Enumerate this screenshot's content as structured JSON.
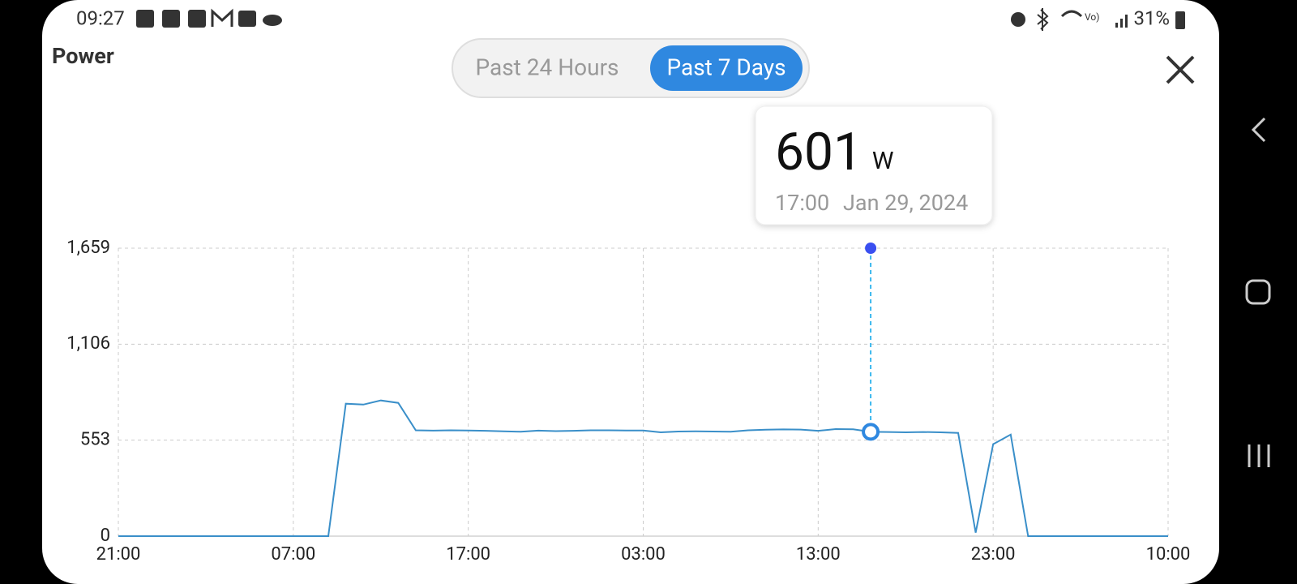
{
  "status_bar": {
    "time": "09:27",
    "battery": "31%"
  },
  "header": {
    "title": "Power",
    "tabs": [
      "Past 24 Hours",
      "Past 7 Days"
    ]
  },
  "tooltip": {
    "unit": "W",
    "time": "17:00",
    "date": "Jan 29, 2024"
  },
  "chart_data": {
    "type": "line",
    "categories": [
      "21:00",
      null,
      null,
      null,
      null,
      null,
      null,
      null,
      null,
      null,
      "07:00",
      null,
      null,
      null,
      null,
      null,
      null,
      null,
      null,
      null,
      "17:00",
      null,
      null,
      null,
      null,
      null,
      null,
      null,
      null,
      null,
      "03:00",
      null,
      null,
      null,
      null,
      null,
      null,
      null,
      null,
      null,
      "13:00",
      null,
      null,
      null,
      null,
      null,
      null,
      null,
      null,
      null,
      "23:00",
      null,
      null,
      null,
      null,
      null,
      null,
      null,
      null,
      null,
      "10:00"
    ],
    "series": [
      {
        "name": "Power",
        "color": "#3a8fc9",
        "values": [
          0,
          0,
          0,
          0,
          0,
          0,
          0,
          0,
          0,
          0,
          0,
          0,
          0,
          763,
          758,
          782,
          768,
          610,
          608,
          610,
          609,
          607,
          604,
          602,
          608,
          605,
          607,
          610,
          610,
          609,
          609,
          598,
          603,
          604,
          603,
          602,
          610,
          613,
          615,
          614,
          607,
          617,
          616,
          601,
          600,
          598,
          600,
          598,
          595,
          20,
          530,
          585,
          0,
          0,
          0,
          0,
          0,
          0,
          0,
          0,
          0
        ]
      }
    ],
    "ylim": [
      0,
      1659
    ],
    "yticks": [
      0,
      553,
      {
        "value": 1106,
        "label": "1,106"
      },
      {
        "value": 1659,
        "label": "1,659"
      }
    ],
    "grid": true
  }
}
